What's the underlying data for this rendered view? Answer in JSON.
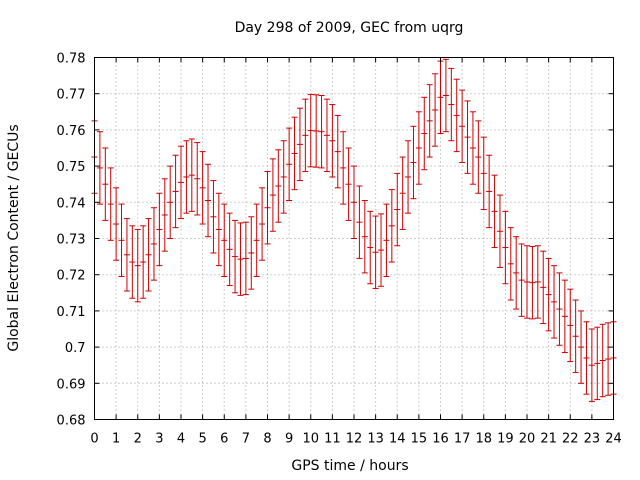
{
  "chart_data": {
    "type": "scatter",
    "title": "Day 298 of 2009, GEC from uqrg",
    "xlabel": "GPS time / hours",
    "ylabel": "Global Electron Content / GECUs",
    "xlim": [
      0,
      24
    ],
    "ylim": [
      0.68,
      0.78
    ],
    "grid": true,
    "error_bar_color": "#cc0000",
    "xticks": [
      "0",
      "1",
      "2",
      "3",
      "4",
      "5",
      "6",
      "7",
      "8",
      "9",
      "10",
      "11",
      "12",
      "13",
      "14",
      "15",
      "16",
      "17",
      "18",
      "19",
      "20",
      "21",
      "22",
      "23",
      "24"
    ],
    "yticks": [
      "0.68",
      "0.69",
      "0.7",
      "0.71",
      "0.72",
      "0.73",
      "0.74",
      "0.75",
      "0.76",
      "0.77",
      "0.78"
    ],
    "series": [
      {
        "name": "GEC",
        "error": 0.01,
        "x": [
          0,
          0.25,
          0.5,
          0.75,
          1,
          1.25,
          1.5,
          1.75,
          2,
          2.25,
          2.5,
          2.75,
          3,
          3.25,
          3.5,
          3.75,
          4,
          4.25,
          4.5,
          4.75,
          5,
          5.25,
          5.5,
          5.75,
          6,
          6.25,
          6.5,
          6.75,
          7,
          7.25,
          7.5,
          7.75,
          8,
          8.25,
          8.5,
          8.75,
          9,
          9.25,
          9.5,
          9.75,
          10,
          10.25,
          10.5,
          10.75,
          11,
          11.25,
          11.5,
          11.75,
          12,
          12.25,
          12.5,
          12.75,
          13,
          13.25,
          13.5,
          13.75,
          14,
          14.25,
          14.5,
          14.75,
          15,
          15.25,
          15.5,
          15.75,
          16,
          16.25,
          16.5,
          16.75,
          17,
          17.25,
          17.5,
          17.75,
          18,
          18.25,
          18.5,
          18.75,
          19,
          19.25,
          19.5,
          19.75,
          20,
          20.25,
          20.5,
          20.75,
          21,
          21.25,
          21.5,
          21.75,
          22,
          22.25,
          22.5,
          22.75,
          23,
          23.25,
          23.5,
          23.75,
          24
        ],
        "y": [
          0.7525,
          0.7495,
          0.745,
          0.7395,
          0.734,
          0.7295,
          0.7255,
          0.7235,
          0.7225,
          0.7235,
          0.7255,
          0.7285,
          0.7325,
          0.7365,
          0.74,
          0.743,
          0.7455,
          0.747,
          0.7475,
          0.7465,
          0.744,
          0.7405,
          0.736,
          0.7325,
          0.7295,
          0.727,
          0.725,
          0.7243,
          0.7245,
          0.726,
          0.7295,
          0.734,
          0.7385,
          0.742,
          0.7445,
          0.747,
          0.7505,
          0.7535,
          0.756,
          0.7585,
          0.7598,
          0.7597,
          0.7595,
          0.7585,
          0.757,
          0.754,
          0.7495,
          0.745,
          0.74,
          0.7345,
          0.7305,
          0.7275,
          0.7262,
          0.7268,
          0.7295,
          0.7335,
          0.738,
          0.7425,
          0.747,
          0.751,
          0.755,
          0.759,
          0.7625,
          0.7655,
          0.769,
          0.7695,
          0.767,
          0.764,
          0.761,
          0.758,
          0.755,
          0.7525,
          0.748,
          0.743,
          0.7375,
          0.732,
          0.7275,
          0.723,
          0.7205,
          0.7185,
          0.718,
          0.7178,
          0.718,
          0.7165,
          0.7145,
          0.7125,
          0.7105,
          0.7085,
          0.706,
          0.703,
          0.7,
          0.697,
          0.695,
          0.6955,
          0.6963,
          0.6967,
          0.697
        ]
      }
    ]
  }
}
